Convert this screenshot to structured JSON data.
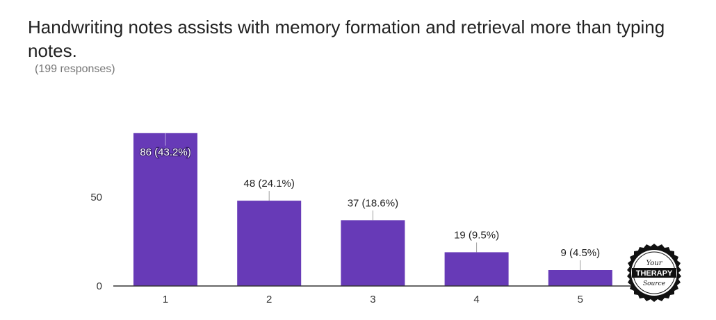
{
  "header": {
    "title": "Handwriting notes assists with memory formation and retrieval more than typing notes.",
    "responses": "(199 responses)"
  },
  "logo": {
    "line1": "Your",
    "line2": "THERAPY",
    "line3": "Source"
  },
  "colors": {
    "bar": "#673ab7",
    "axis": "#333333",
    "text": "#212121",
    "muted": "#757575"
  },
  "chart_data": {
    "type": "bar",
    "title": "Handwriting notes assists with memory formation and retrieval more than typing notes.",
    "subtitle": "(199 responses)",
    "categories": [
      "1",
      "2",
      "3",
      "4",
      "5"
    ],
    "values": [
      86,
      48,
      37,
      19,
      9
    ],
    "labels": [
      "86 (43.2%)",
      "48 (24.1%)",
      "37 (18.6%)",
      "19 (9.5%)",
      "9 (4.5%)"
    ],
    "yticks": [
      0,
      50
    ],
    "ylim": [
      0,
      86
    ],
    "grid": false,
    "legend": "none"
  }
}
